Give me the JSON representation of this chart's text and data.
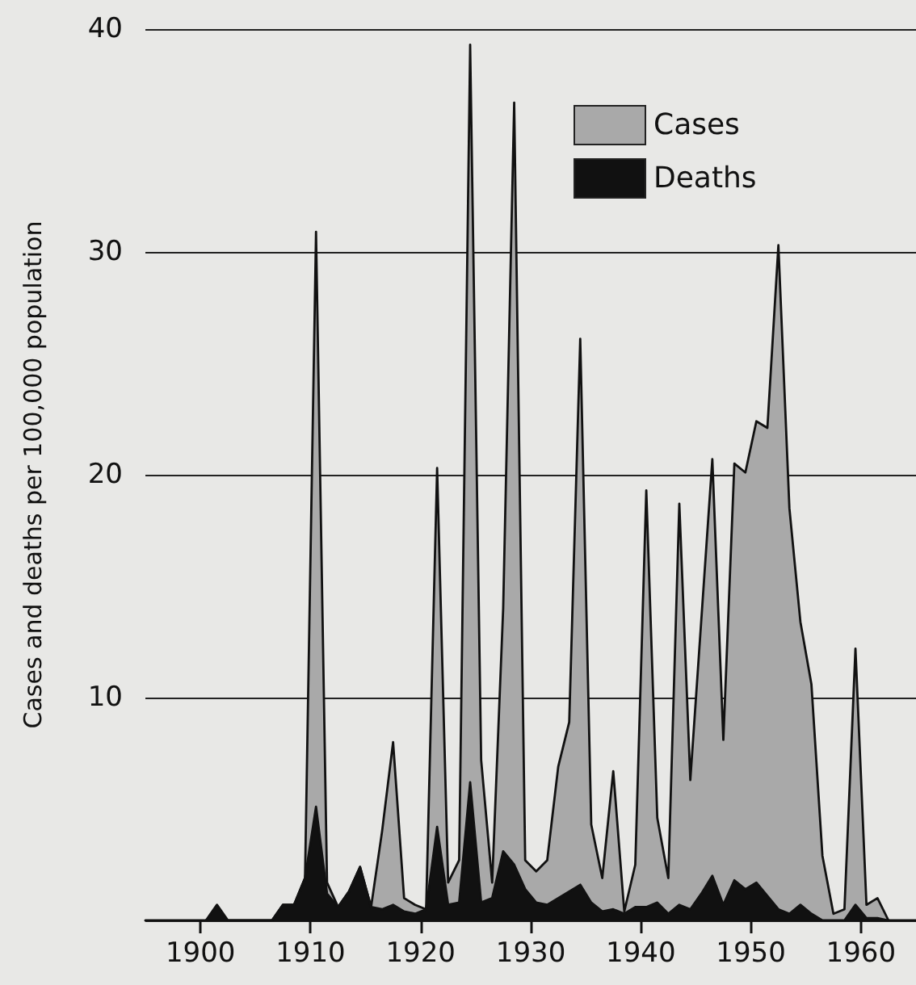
{
  "chart_data": {
    "type": "area",
    "ylabel": "Cases and deaths per 100,000 population",
    "xlim": [
      1895,
      1965
    ],
    "xticks": [
      1900,
      1910,
      1920,
      1930,
      1940,
      1950,
      1960
    ],
    "ylim": [
      0,
      40
    ],
    "yticks": [
      {
        "value": 0,
        "label": null
      },
      10,
      20,
      30,
      40
    ],
    "grid": "y",
    "legend": "top right",
    "marker": "none",
    "series": [
      {
        "name": "Cases",
        "color": "#a9a9a9",
        "x": [
          1906.5,
          1907.5,
          1908.5,
          1909.5,
          1910.5,
          1911.5,
          1912.5,
          1913.5,
          1914.5,
          1915.5,
          1916.5,
          1917.5,
          1918.5,
          1919.5,
          1920.5,
          1921.5,
          1922.5,
          1923.5,
          1924.5,
          1925.5,
          1926.5,
          1927.5,
          1928.5,
          1929.5,
          1930.5,
          1931.5,
          1932.5,
          1933.5,
          1934.5,
          1935.5,
          1936.5,
          1937.5,
          1938.5,
          1939.5,
          1940.5,
          1941.5,
          1942.5,
          1943.5,
          1944.5,
          1945.5,
          1946.5,
          1947.5,
          1948.5,
          1949.5,
          1950.5,
          1951.5,
          1952.5,
          1953.5,
          1954.5,
          1955.5,
          1956.5,
          1957.5,
          1958.5,
          1959.5,
          1960.5,
          1961.5,
          1962.5
        ],
        "values": [
          0,
          0.7,
          0.7,
          1.9,
          30.9,
          1.7,
          0.6,
          1.3,
          2.4,
          0.6,
          4,
          8,
          1,
          0.7,
          0.5,
          20.3,
          1.7,
          2.7,
          39.3,
          7.2,
          1.7,
          14,
          36.7,
          2.7,
          2.2,
          2.7,
          6.9,
          8.9,
          26.1,
          4.3,
          1.9,
          6.7,
          0.4,
          2.5,
          19.3,
          4.6,
          1.9,
          18.7,
          6.3,
          13.5,
          20.7,
          8.1,
          20.5,
          20.1,
          22.4,
          22.1,
          30.3,
          18.5,
          13.4,
          10.6,
          2.9,
          0.3,
          0.5,
          12.2,
          0.7,
          1,
          0
        ]
      },
      {
        "name": "Deaths",
        "color": "#111111",
        "x": [
          1900.5,
          1901.5,
          1902.5,
          1903.5,
          1904.5,
          1905.5,
          1906.5,
          1907.5,
          1908.5,
          1909.5,
          1910.5,
          1911.5,
          1912.5,
          1913.5,
          1914.5,
          1915.5,
          1916.5,
          1917.5,
          1918.5,
          1919.5,
          1920.5,
          1921.5,
          1922.5,
          1923.5,
          1924.5,
          1925.5,
          1926.5,
          1927.5,
          1928.5,
          1929.5,
          1930.5,
          1931.5,
          1932.5,
          1933.5,
          1934.5,
          1935.5,
          1936.5,
          1937.5,
          1938.5,
          1939.5,
          1940.5,
          1941.5,
          1942.5,
          1943.5,
          1944.5,
          1945.5,
          1946.5,
          1947.5,
          1948.5,
          1949.5,
          1950.5,
          1951.5,
          1952.5,
          1953.5,
          1954.5,
          1955.5,
          1956.5,
          1957.5,
          1958.5,
          1959.5,
          1960.5,
          1961.5,
          1962.5
        ],
        "values": [
          0,
          0.7,
          0,
          0,
          0,
          0,
          0,
          0.7,
          0.7,
          1.9,
          5.1,
          1.2,
          0.6,
          1.3,
          2.4,
          0.6,
          0.5,
          0.7,
          0.4,
          0.3,
          0.5,
          4.2,
          0.7,
          0.8,
          6.2,
          0.8,
          1,
          3.1,
          2.5,
          1.4,
          0.8,
          0.7,
          1,
          1.3,
          1.6,
          0.8,
          0.4,
          0.5,
          0.3,
          0.6,
          0.6,
          0.8,
          0.3,
          0.7,
          0.5,
          1.2,
          2,
          0.7,
          1.8,
          1.4,
          1.7,
          1.1,
          0.5,
          0.3,
          0.7,
          0.3,
          0,
          0,
          0,
          0.7,
          0.1,
          0.1,
          0
        ]
      }
    ]
  }
}
